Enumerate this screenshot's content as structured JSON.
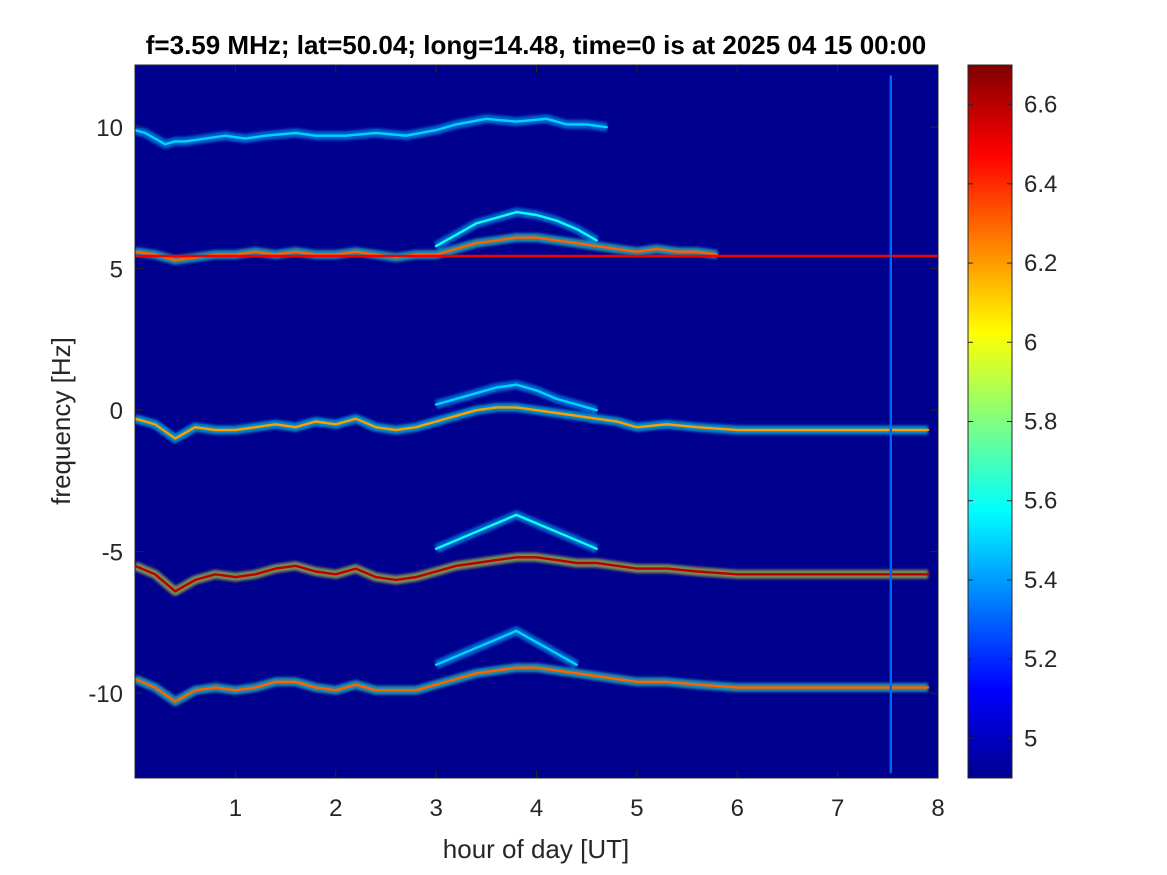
{
  "chart_data": {
    "type": "heatmap",
    "title": "f=3.59 MHz;  lat=50.04; long=14.48, time=0 is at 2025 04 15 00:00",
    "xlabel": "hour of day [UT]",
    "ylabel": "frequency [Hz]",
    "xlim": [
      0,
      8
    ],
    "ylim": [
      -13,
      12.2
    ],
    "x_ticks": [
      1,
      2,
      3,
      4,
      5,
      6,
      7,
      8
    ],
    "x_tick_labels": [
      "1",
      "2",
      "3",
      "4",
      "5",
      "6",
      "7",
      "8"
    ],
    "y_ticks": [
      10,
      5,
      0,
      -5,
      -10
    ],
    "y_tick_labels": [
      "10",
      "5",
      "0",
      "-5",
      "-10"
    ],
    "colorbar": {
      "colormap": "jet",
      "clim": [
        4.9,
        6.7
      ],
      "ticks": [
        6.6,
        6.4,
        6.2,
        6,
        5.8,
        5.6,
        5.4,
        5.2,
        5
      ],
      "tick_labels": [
        "6.6",
        "6.4",
        "6.2",
        "6",
        "5.8",
        "5.6",
        "5.4",
        "5.2",
        "5"
      ]
    },
    "background_color": "#00008f",
    "grid": false,
    "series": [
      {
        "x": [
          0,
          0.1,
          0.2,
          0.3,
          0.4,
          0.5,
          0.7,
          0.9,
          1.1,
          1.3,
          1.6,
          1.8,
          2.1,
          2.4,
          2.7,
          3,
          3.2,
          3.5,
          3.8,
          4.1,
          4.3,
          4.5,
          4.7
        ],
        "y": [
          9.9,
          9.8,
          9.6,
          9.4,
          9.5,
          9.5,
          9.6,
          9.7,
          9.6,
          9.7,
          9.8,
          9.7,
          9.7,
          9.8,
          9.7,
          9.9,
          10.1,
          10.3,
          10.2,
          10.3,
          10.1,
          10.1,
          10.0
        ],
        "intensity": 5.5
      },
      {
        "x": [
          0,
          0.2,
          0.4,
          0.6,
          0.8,
          1.0,
          1.2,
          1.4,
          1.6,
          1.8,
          2.0,
          2.2,
          2.4,
          2.6,
          2.8,
          3.0,
          3.2,
          3.4,
          3.6,
          3.8,
          4.0,
          4.2,
          4.4,
          4.6,
          4.8,
          5.0,
          5.2,
          5.4,
          5.6,
          5.8
        ],
        "y": [
          5.6,
          5.5,
          5.3,
          5.4,
          5.5,
          5.5,
          5.6,
          5.5,
          5.6,
          5.5,
          5.5,
          5.6,
          5.5,
          5.4,
          5.5,
          5.5,
          5.7,
          5.9,
          6.0,
          6.1,
          6.1,
          6.0,
          5.9,
          5.8,
          5.7,
          5.6,
          5.7,
          5.6,
          5.6,
          5.5
        ],
        "intensity": 6.3
      },
      {
        "x": [
          0,
          8
        ],
        "y": [
          5.45,
          5.45
        ],
        "intensity": 6.5
      },
      {
        "x": [
          3.0,
          3.2,
          3.4,
          3.6,
          3.8,
          4.0,
          4.2,
          4.4,
          4.6
        ],
        "y": [
          5.8,
          6.2,
          6.6,
          6.8,
          7.0,
          6.9,
          6.7,
          6.4,
          6.0
        ],
        "intensity": 5.6
      },
      {
        "x": [
          0,
          0.2,
          0.4,
          0.6,
          0.8,
          1.0,
          1.2,
          1.4,
          1.6,
          1.8,
          2.0,
          2.2,
          2.4,
          2.6,
          2.8,
          3.0,
          3.2,
          3.4,
          3.6,
          3.8,
          4.0,
          4.2,
          4.4,
          4.6,
          4.8,
          5.0,
          5.3,
          5.6,
          6.0,
          6.5,
          7.0,
          7.5,
          7.9
        ],
        "y": [
          -0.3,
          -0.5,
          -1.0,
          -0.6,
          -0.7,
          -0.7,
          -0.6,
          -0.5,
          -0.6,
          -0.4,
          -0.5,
          -0.3,
          -0.6,
          -0.7,
          -0.6,
          -0.4,
          -0.2,
          0.0,
          0.1,
          0.1,
          0.0,
          -0.1,
          -0.2,
          -0.3,
          -0.4,
          -0.6,
          -0.5,
          -0.6,
          -0.7,
          -0.7,
          -0.7,
          -0.7,
          -0.7
        ],
        "intensity": 6.2
      },
      {
        "x": [
          3.0,
          3.2,
          3.4,
          3.6,
          3.8,
          4.0,
          4.2,
          4.4,
          4.6
        ],
        "y": [
          0.2,
          0.4,
          0.6,
          0.8,
          0.9,
          0.7,
          0.4,
          0.2,
          0.0
        ],
        "intensity": 5.5
      },
      {
        "x": [
          0,
          0.2,
          0.4,
          0.6,
          0.8,
          1.0,
          1.2,
          1.4,
          1.6,
          1.8,
          2.0,
          2.2,
          2.4,
          2.6,
          2.8,
          3.0,
          3.2,
          3.4,
          3.6,
          3.8,
          4.0,
          4.2,
          4.4,
          4.6,
          4.8,
          5.0,
          5.3,
          5.6,
          6.0,
          6.5,
          7.0,
          7.5,
          7.9
        ],
        "y": [
          -5.5,
          -5.8,
          -6.4,
          -6.0,
          -5.8,
          -5.9,
          -5.8,
          -5.6,
          -5.5,
          -5.7,
          -5.8,
          -5.6,
          -5.9,
          -6.0,
          -5.9,
          -5.7,
          -5.5,
          -5.4,
          -5.3,
          -5.2,
          -5.2,
          -5.3,
          -5.4,
          -5.4,
          -5.5,
          -5.6,
          -5.6,
          -5.7,
          -5.8,
          -5.8,
          -5.8,
          -5.8,
          -5.8
        ],
        "intensity": 6.6
      },
      {
        "x": [
          3.0,
          3.2,
          3.4,
          3.6,
          3.8,
          4.0,
          4.2,
          4.4,
          4.6
        ],
        "y": [
          -4.9,
          -4.6,
          -4.3,
          -4.0,
          -3.7,
          -4.0,
          -4.3,
          -4.6,
          -4.9
        ],
        "intensity": 5.6
      },
      {
        "x": [
          0,
          0.2,
          0.4,
          0.6,
          0.8,
          1.0,
          1.2,
          1.4,
          1.6,
          1.8,
          2.0,
          2.2,
          2.4,
          2.6,
          2.8,
          3.0,
          3.2,
          3.4,
          3.6,
          3.8,
          4.0,
          4.2,
          4.4,
          4.6,
          4.8,
          5.0,
          5.3,
          5.6,
          6.0,
          6.5,
          7.0,
          7.5,
          7.9
        ],
        "y": [
          -9.5,
          -9.8,
          -10.3,
          -9.9,
          -9.8,
          -9.9,
          -9.8,
          -9.6,
          -9.6,
          -9.8,
          -9.9,
          -9.7,
          -9.9,
          -9.9,
          -9.9,
          -9.7,
          -9.5,
          -9.3,
          -9.2,
          -9.1,
          -9.1,
          -9.2,
          -9.3,
          -9.4,
          -9.5,
          -9.6,
          -9.6,
          -9.7,
          -9.8,
          -9.8,
          -9.8,
          -9.8,
          -9.8
        ],
        "intensity": 6.3
      },
      {
        "x": [
          3.0,
          3.2,
          3.4,
          3.6,
          3.8,
          4.0,
          4.2,
          4.4
        ],
        "y": [
          -9.0,
          -8.7,
          -8.4,
          -8.1,
          -7.8,
          -8.2,
          -8.6,
          -9.0
        ],
        "intensity": 5.5
      },
      {
        "x": [
          7.53,
          7.53
        ],
        "y": [
          -12.8,
          11.8
        ],
        "intensity": 5.3
      }
    ]
  }
}
